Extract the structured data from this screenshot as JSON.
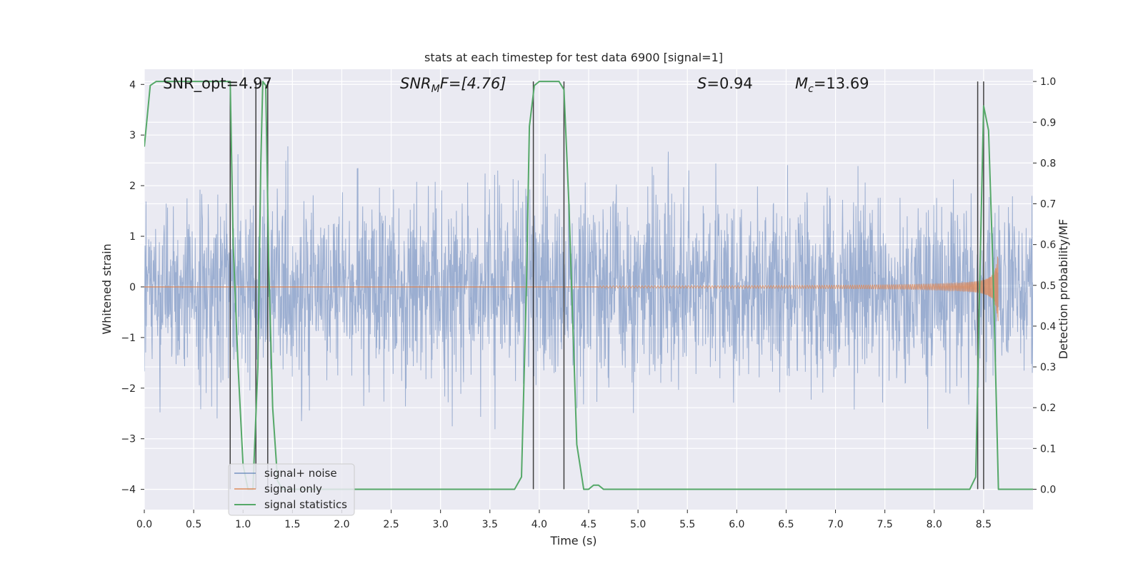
{
  "chart_data": {
    "type": "line",
    "title": "stats at each timestep for test data 6900 [signal=1]",
    "xlabel": "Time (s)",
    "ylabel_left": "Whitened strain",
    "ylabel_right": "Detection probability/MF",
    "xlim": [
      0,
      9.0
    ],
    "ylim_left": [
      -4.4,
      4.3
    ],
    "ylim_right": [
      -0.05,
      1.03
    ],
    "x_ticks": [
      0.0,
      0.5,
      1.0,
      1.5,
      2.0,
      2.5,
      3.0,
      3.5,
      4.0,
      4.5,
      5.0,
      5.5,
      6.0,
      6.5,
      7.0,
      7.5,
      8.0,
      8.5
    ],
    "x_tick_labels": [
      "0.0",
      "0.5",
      "1.0",
      "1.5",
      "2.0",
      "2.5",
      "3.0",
      "3.5",
      "4.0",
      "4.5",
      "5.0",
      "5.5",
      "6.0",
      "6.5",
      "7.0",
      "7.5",
      "8.0",
      "8.5"
    ],
    "y_left_ticks": [
      4,
      3,
      2,
      1,
      0,
      -1,
      -2,
      -3,
      -4
    ],
    "y_left_tick_labels": [
      "4",
      "3",
      "2",
      "1",
      "0",
      "−1",
      "−2",
      "−3",
      "−4"
    ],
    "y_right_ticks": [
      1.0,
      0.9,
      0.8,
      0.7,
      0.6,
      0.5,
      0.4,
      0.3,
      0.2,
      0.1,
      0.0
    ],
    "y_right_tick_labels": [
      "1.0",
      "0.9",
      "0.8",
      "0.7",
      "0.6",
      "0.5",
      "0.4",
      "0.3",
      "0.2",
      "0.1",
      "0.0"
    ],
    "grid": true,
    "legend_placement": "lower-left",
    "colors": {
      "background": "#eaeaf2",
      "grid": "#ffffff",
      "noise": "#4c72b0",
      "signal": "#dd8452",
      "stats": "#55a868",
      "vlines": "#404040"
    },
    "annotations": {
      "snr_opt": "SNR_opt=4.97",
      "snr_mf_prefix": "SNR",
      "snr_mf_sub": "M",
      "snr_mf_suffix": "F=[4.76]",
      "s_var": "S",
      "s_val": "=0.94",
      "mc_var": "M",
      "mc_sub": "c",
      "mc_val": "=13.69"
    },
    "series": [
      {
        "name": "signal+ noise",
        "kind": "noise",
        "sigma": 0.9,
        "peak_max": 3.9
      },
      {
        "name": "signal only",
        "kind": "chirp",
        "t_merge": 8.65,
        "amp_peak": 0.85
      },
      {
        "name": "signal statistics",
        "kind": "probability",
        "x": [
          0.0,
          0.06,
          0.12,
          0.3,
          0.6,
          0.87,
          0.9,
          0.95,
          1.0,
          1.05,
          1.1,
          1.15,
          1.18,
          1.2,
          1.23,
          1.26,
          1.3,
          1.35,
          1.4,
          1.5,
          2.0,
          3.0,
          3.5,
          3.75,
          3.82,
          3.87,
          3.9,
          3.95,
          4.0,
          4.1,
          4.2,
          4.25,
          4.3,
          4.38,
          4.45,
          4.5,
          4.55,
          4.6,
          4.65,
          5.0,
          6.0,
          7.0,
          8.0,
          8.36,
          8.42,
          8.46,
          8.5,
          8.55,
          8.6,
          8.65,
          8.7,
          8.8,
          9.0
        ],
        "y": [
          0.84,
          0.99,
          1.0,
          1.0,
          1.0,
          1.0,
          0.6,
          0.3,
          0.06,
          0.0,
          0.0,
          0.3,
          0.8,
          1.0,
          0.99,
          0.55,
          0.2,
          0.02,
          0.0,
          0.0,
          0.0,
          0.0,
          0.0,
          0.0,
          0.03,
          0.5,
          0.89,
          0.99,
          1.0,
          1.0,
          1.0,
          0.98,
          0.7,
          0.11,
          0.0,
          0.0,
          0.01,
          0.01,
          0.0,
          0.0,
          0.0,
          0.0,
          0.0,
          0.0,
          0.03,
          0.5,
          0.94,
          0.88,
          0.5,
          0.0,
          0.0,
          0.0,
          0.0
        ]
      }
    ],
    "vlines_x": [
      0.87,
      1.13,
      1.25,
      3.94,
      4.25,
      8.44,
      8.5
    ]
  }
}
